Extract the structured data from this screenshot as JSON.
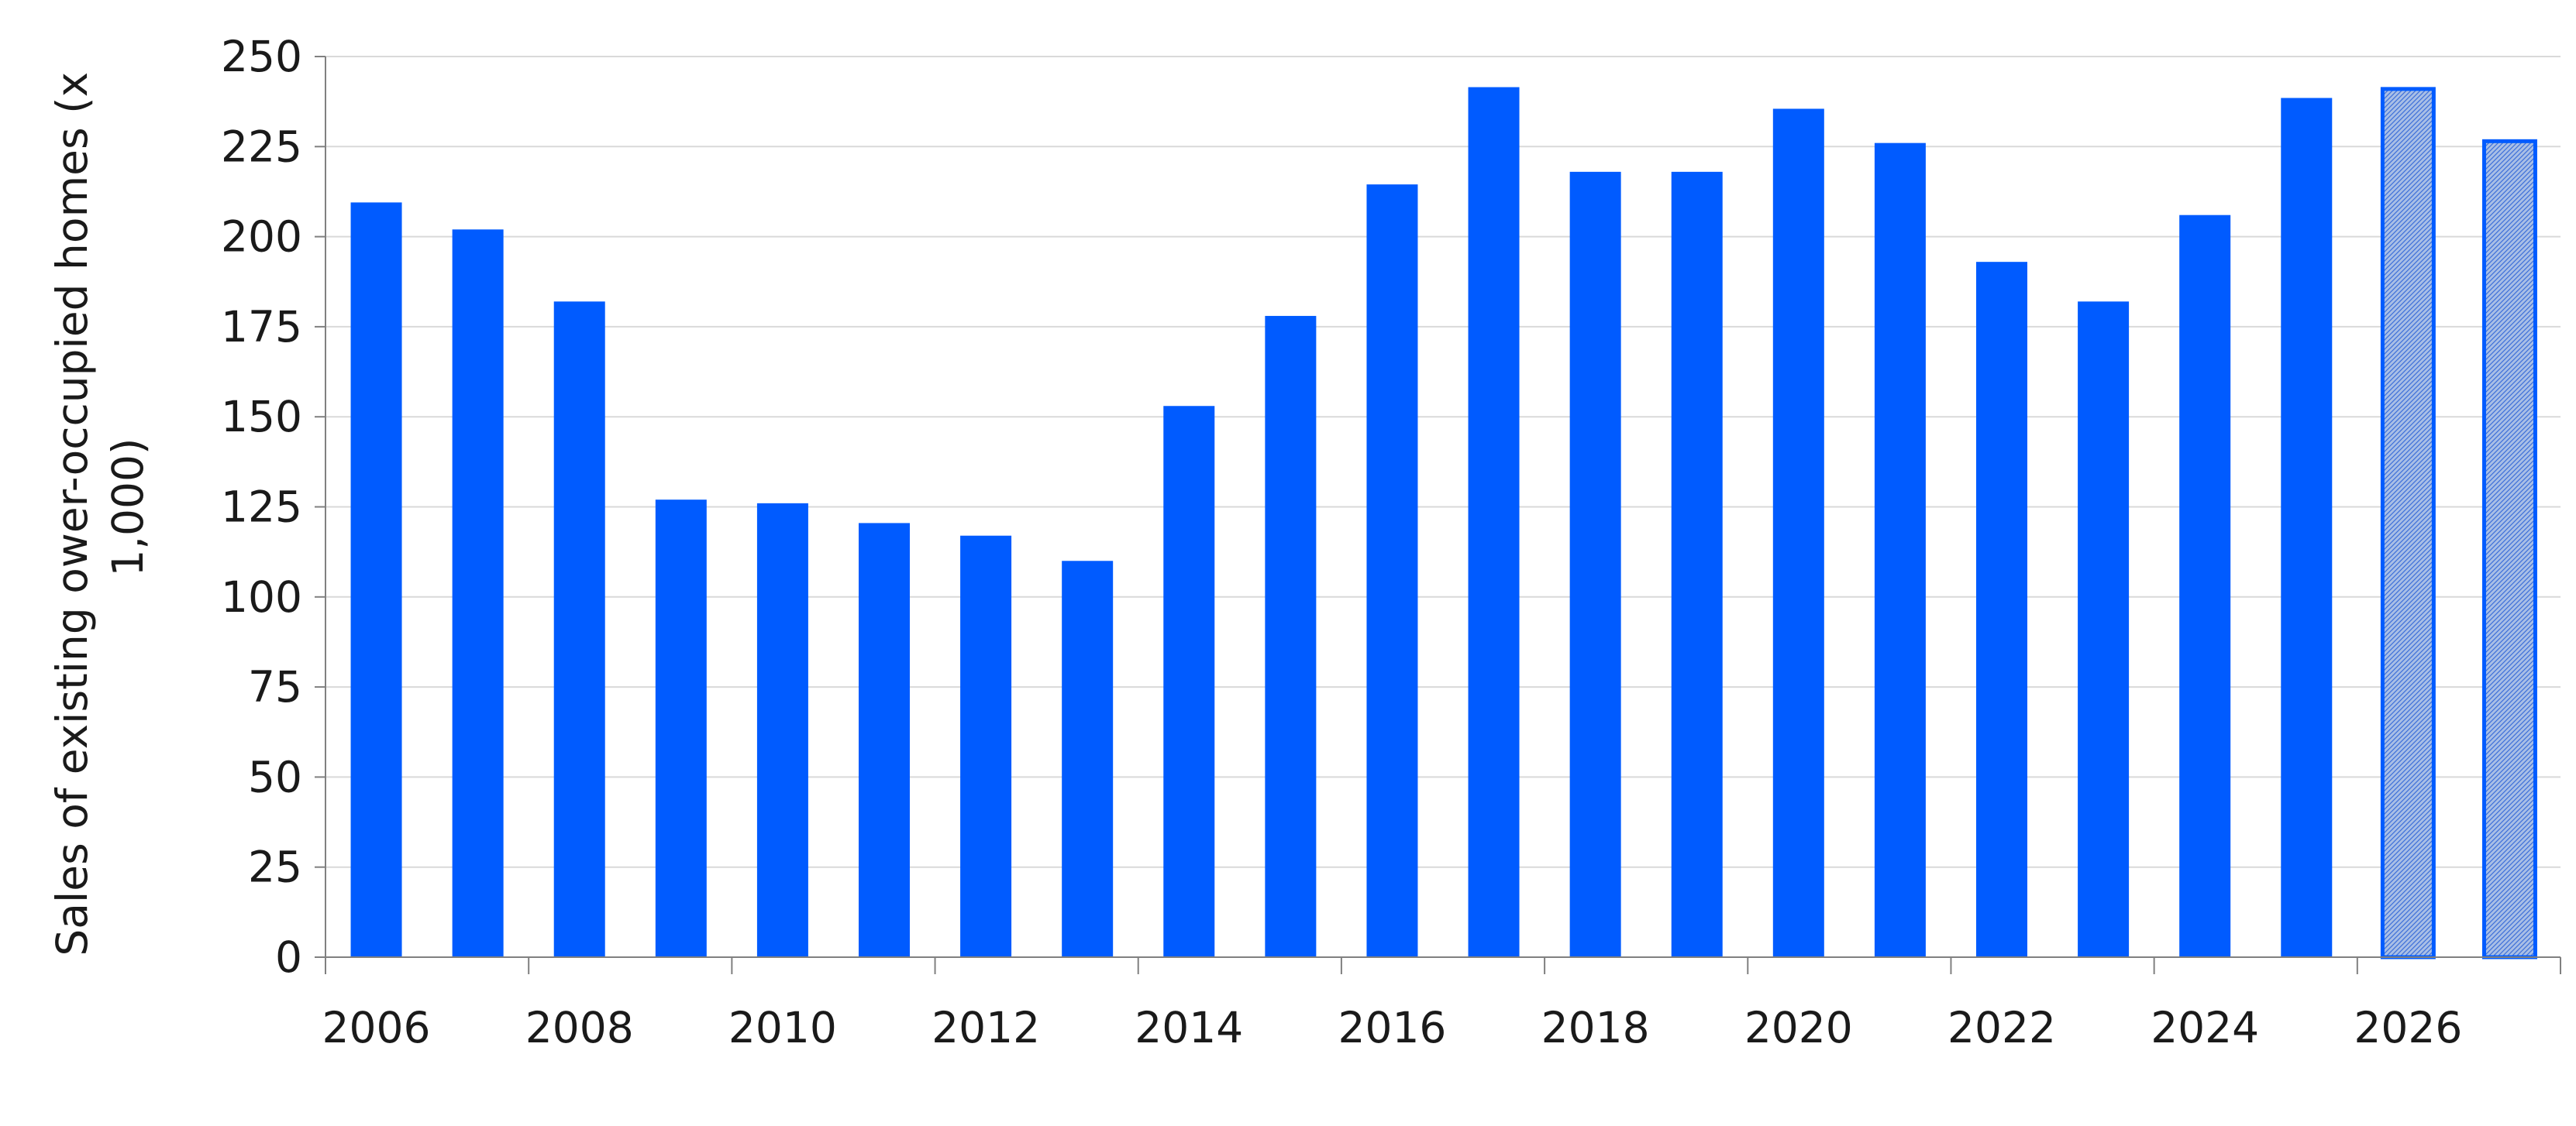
{
  "colors": {
    "bar": "#005bff",
    "forecast_fill": "#a9bfe6",
    "grid": "#d9d9d9",
    "axis": "#808080",
    "text": "#1a1a1a"
  },
  "chart_data": {
    "type": "bar",
    "title": "",
    "xlabel": "",
    "ylabel_lines": [
      "Sales of existing ower-occupied homes (x",
      "1,000)"
    ],
    "ylim": [
      0,
      250
    ],
    "yticks": [
      0,
      25,
      50,
      75,
      100,
      125,
      150,
      175,
      200,
      225,
      250
    ],
    "xtick_labels": [
      "2006",
      "2008",
      "2010",
      "2012",
      "2014",
      "2016",
      "2018",
      "2020",
      "2022",
      "2024",
      "2026"
    ],
    "grid": true,
    "legend": "none",
    "categories": [
      "2006",
      "2007",
      "2008",
      "2009",
      "2010",
      "2011",
      "2012",
      "2013",
      "2014",
      "2015",
      "2016",
      "2017",
      "2018",
      "2019",
      "2020",
      "2021",
      "2022",
      "2023",
      "2024",
      "2025",
      "2026",
      "2027"
    ],
    "values": [
      209.5,
      202,
      182,
      127,
      126,
      120.5,
      117,
      110,
      153,
      178,
      214.5,
      241.5,
      218,
      218,
      235.5,
      226,
      193,
      182,
      206,
      238.5,
      241,
      226.5
    ],
    "forecast": [
      false,
      false,
      false,
      false,
      false,
      false,
      false,
      false,
      false,
      false,
      false,
      false,
      false,
      false,
      false,
      false,
      false,
      false,
      false,
      false,
      true,
      true
    ]
  }
}
